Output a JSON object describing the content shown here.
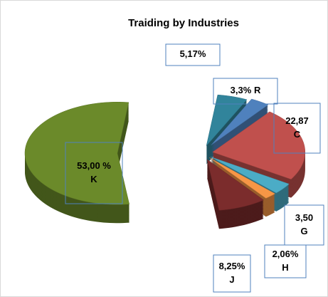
{
  "chart_data": {
    "type": "pie3d",
    "title": "Traiding by Industries",
    "categories": [
      null,
      "R",
      "C",
      "G",
      "H",
      "J",
      "K"
    ],
    "values": [
      5.17,
      3.3,
      22.87,
      3.5,
      2.06,
      8.25,
      53.0
    ],
    "value_labels": [
      "5,17%",
      "3,3%",
      "22,87",
      "3,50",
      "2,06%",
      "8,25%",
      "53,00 %"
    ],
    "colors": [
      "#31849b",
      "#4f81bd",
      "#c0504d",
      "#4bacc6",
      "#f79646",
      "#7b2c2c",
      "#6b8a2a"
    ]
  }
}
